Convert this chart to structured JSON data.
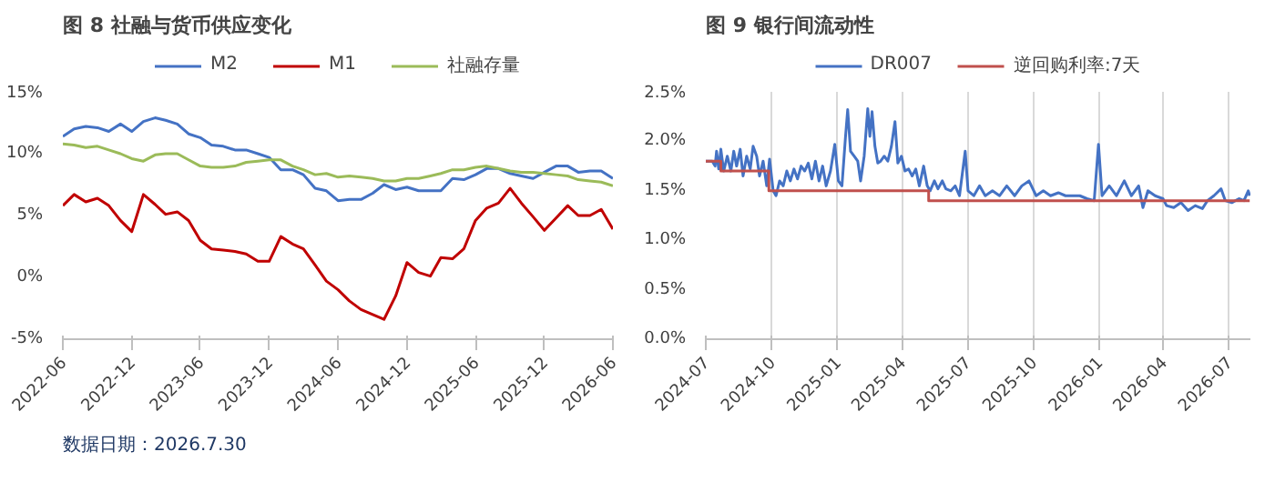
{
  "chart_data": [
    {
      "type": "line",
      "title": "图 8  社融与货币供应变化",
      "legend": "top",
      "grid": false,
      "annotations": [
        "数据日期：2026.7.30"
      ],
      "x": [
        "2022-06",
        "2022-07",
        "2022-08",
        "2022-09",
        "2022-10",
        "2022-11",
        "2022-12",
        "2023-01",
        "2023-02",
        "2023-03",
        "2023-04",
        "2023-05",
        "2023-06",
        "2023-07",
        "2023-08",
        "2023-09",
        "2023-10",
        "2023-11",
        "2023-12",
        "2024-01",
        "2024-02",
        "2024-03",
        "2024-04",
        "2024-05",
        "2024-06",
        "2024-07",
        "2024-08",
        "2024-09",
        "2024-10",
        "2024-11",
        "2024-12",
        "2025-01",
        "2025-02",
        "2025-03",
        "2025-04",
        "2025-05",
        "2025-06",
        "2025-07",
        "2025-08",
        "2025-09",
        "2025-10",
        "2025-11",
        "2025-12",
        "2026-01",
        "2026-02",
        "2026-03",
        "2026-04",
        "2026-05",
        "2026-06"
      ],
      "xlim": [
        "2022-06",
        "2026-06"
      ],
      "xticks": [
        "2022-06",
        "2022-12",
        "2023-06",
        "2023-12",
        "2024-06",
        "2024-12",
        "2025-06",
        "2025-12",
        "2026-06"
      ],
      "ylim": [
        -5,
        15
      ],
      "yticks": [
        {
          "value": -5,
          "label": "-5%"
        },
        {
          "value": 0,
          "label": "0%"
        },
        {
          "value": 5,
          "label": "5%"
        },
        {
          "value": 10,
          "label": "10%"
        },
        {
          "value": 15,
          "label": "15%"
        }
      ],
      "series": [
        {
          "name": "M2",
          "color": "#4472c4",
          "values": [
            11.4,
            12.0,
            12.2,
            12.1,
            11.8,
            12.4,
            11.8,
            12.6,
            12.9,
            12.7,
            12.4,
            11.6,
            11.3,
            10.7,
            10.6,
            10.3,
            10.3,
            10.0,
            9.7,
            8.7,
            8.7,
            8.3,
            7.2,
            7.0,
            6.2,
            6.3,
            6.3,
            6.8,
            7.5,
            7.1,
            7.3,
            7.0,
            7.0,
            7.0,
            8.0,
            7.9,
            8.3,
            8.8,
            8.8,
            8.4,
            8.2,
            8.0,
            8.5,
            9.0,
            9.0,
            8.5,
            8.6,
            8.6,
            8.0
          ]
        },
        {
          "name": "M1",
          "color": "#c00000",
          "values": [
            5.8,
            6.7,
            6.1,
            6.4,
            5.8,
            4.6,
            3.7,
            6.7,
            5.9,
            5.1,
            5.3,
            4.6,
            3.0,
            2.3,
            2.2,
            2.1,
            1.9,
            1.3,
            1.3,
            3.3,
            2.7,
            2.3,
            1.0,
            -0.3,
            -1.0,
            -1.9,
            -2.6,
            -3.0,
            -3.4,
            -1.5,
            1.2,
            0.4,
            0.1,
            1.6,
            1.5,
            2.3,
            4.6,
            5.6,
            6.0,
            7.2,
            6.0,
            4.9,
            3.8,
            4.8,
            5.8,
            5.0,
            5.0,
            5.5,
            3.9
          ]
        },
        {
          "name": "社融存量",
          "color": "#9bbb59",
          "values": [
            10.8,
            10.7,
            10.5,
            10.6,
            10.3,
            10.0,
            9.6,
            9.4,
            9.9,
            10.0,
            10.0,
            9.5,
            9.0,
            8.9,
            8.9,
            9.0,
            9.3,
            9.4,
            9.5,
            9.5,
            9.0,
            8.7,
            8.3,
            8.4,
            8.1,
            8.2,
            8.1,
            8.0,
            7.8,
            7.8,
            8.0,
            8.0,
            8.2,
            8.4,
            8.7,
            8.7,
            8.9,
            9.0,
            8.8,
            8.6,
            8.5,
            8.5,
            8.4,
            8.3,
            8.2,
            7.9,
            7.8,
            7.7,
            7.4
          ]
        }
      ]
    },
    {
      "type": "line",
      "title": "图 9  银行间流动性",
      "legend": "top",
      "grid": "x",
      "xlim": [
        "2024-07-01",
        "2026-07-31"
      ],
      "xticks": [
        "2024-07",
        "2024-10",
        "2025-01",
        "2025-04",
        "2025-07",
        "2025-10",
        "2026-01",
        "2026-04",
        "2026-07"
      ],
      "ylim": [
        0,
        2.5
      ],
      "yticks": [
        {
          "value": 0,
          "label": "0.0%"
        },
        {
          "value": 0.5,
          "label": "0.5%"
        },
        {
          "value": 1,
          "label": "1.0%"
        },
        {
          "value": 1.5,
          "label": "1.5%"
        },
        {
          "value": 2,
          "label": "2.0%"
        },
        {
          "value": 2.5,
          "label": "2.5%"
        }
      ],
      "series": [
        {
          "name": "DR007",
          "color": "#4472c4",
          "x": [
            "2024-07-01",
            "2024-07-10",
            "2024-07-14",
            "2024-07-16",
            "2024-07-19",
            "2024-07-22",
            "2024-07-26",
            "2024-07-31",
            "2024-08-05",
            "2024-08-09",
            "2024-08-13",
            "2024-08-18",
            "2024-08-22",
            "2024-08-27",
            "2024-09-01",
            "2024-09-05",
            "2024-09-10",
            "2024-09-14",
            "2024-09-19",
            "2024-09-24",
            "2024-09-28",
            "2024-10-03",
            "2024-10-07",
            "2024-10-12",
            "2024-10-17",
            "2024-10-22",
            "2024-10-27",
            "2024-11-01",
            "2024-11-06",
            "2024-11-11",
            "2024-11-16",
            "2024-11-21",
            "2024-11-26",
            "2024-12-01",
            "2024-12-06",
            "2024-12-11",
            "2024-12-16",
            "2024-12-22",
            "2024-12-28",
            "2025-01-02",
            "2025-01-07",
            "2025-01-12",
            "2025-01-15",
            "2025-01-19",
            "2025-01-24",
            "2025-01-29",
            "2025-02-02",
            "2025-02-07",
            "2025-02-12",
            "2025-02-15",
            "2025-02-18",
            "2025-02-22",
            "2025-02-26",
            "2025-03-02",
            "2025-03-07",
            "2025-03-12",
            "2025-03-17",
            "2025-03-22",
            "2025-03-26",
            "2025-03-31",
            "2025-04-05",
            "2025-04-10",
            "2025-04-15",
            "2025-04-20",
            "2025-04-25",
            "2025-05-01",
            "2025-05-06",
            "2025-05-10",
            "2025-05-16",
            "2025-05-21",
            "2025-05-27",
            "2025-06-01",
            "2025-06-08",
            "2025-06-14",
            "2025-06-20",
            "2025-06-28",
            "2025-07-02",
            "2025-07-10",
            "2025-07-18",
            "2025-07-26",
            "2025-08-05",
            "2025-08-15",
            "2025-08-25",
            "2025-09-05",
            "2025-09-15",
            "2025-09-25",
            "2025-10-05",
            "2025-10-15",
            "2025-10-25",
            "2025-11-05",
            "2025-11-15",
            "2025-11-25",
            "2025-12-05",
            "2025-12-15",
            "2025-12-25",
            "2025-12-31",
            "2026-01-05",
            "2026-01-15",
            "2026-01-25",
            "2026-02-05",
            "2026-02-15",
            "2026-02-25",
            "2026-03-03",
            "2026-03-10",
            "2026-03-20",
            "2026-03-31",
            "2026-04-05",
            "2026-04-15",
            "2026-04-25",
            "2026-05-05",
            "2026-05-15",
            "2026-05-25",
            "2026-06-01",
            "2026-06-10",
            "2026-06-20",
            "2026-06-26",
            "2026-07-05",
            "2026-07-15",
            "2026-07-22",
            "2026-07-28",
            "2026-07-30"
          ],
          "values": [
            1.8,
            1.8,
            1.75,
            1.9,
            1.72,
            1.92,
            1.7,
            1.85,
            1.7,
            1.9,
            1.75,
            1.92,
            1.65,
            1.85,
            1.72,
            1.95,
            1.85,
            1.65,
            1.8,
            1.55,
            1.82,
            1.5,
            1.45,
            1.6,
            1.55,
            1.7,
            1.6,
            1.72,
            1.62,
            1.75,
            1.7,
            1.78,
            1.62,
            1.8,
            1.6,
            1.75,
            1.55,
            1.7,
            1.97,
            1.6,
            1.55,
            2.05,
            2.32,
            1.9,
            1.85,
            1.8,
            1.6,
            1.85,
            2.33,
            2.05,
            2.3,
            1.95,
            1.78,
            1.8,
            1.85,
            1.8,
            1.95,
            2.2,
            1.78,
            1.85,
            1.7,
            1.72,
            1.65,
            1.72,
            1.55,
            1.75,
            1.55,
            1.5,
            1.6,
            1.52,
            1.6,
            1.52,
            1.5,
            1.55,
            1.45,
            1.9,
            1.5,
            1.45,
            1.55,
            1.45,
            1.5,
            1.45,
            1.55,
            1.45,
            1.55,
            1.6,
            1.45,
            1.5,
            1.45,
            1.48,
            1.45,
            1.45,
            1.45,
            1.42,
            1.4,
            1.97,
            1.45,
            1.55,
            1.45,
            1.6,
            1.45,
            1.55,
            1.33,
            1.5,
            1.45,
            1.42,
            1.35,
            1.33,
            1.38,
            1.3,
            1.35,
            1.32,
            1.4,
            1.45,
            1.52,
            1.4,
            1.38,
            1.42,
            1.4,
            1.5,
            1.45
          ]
        },
        {
          "name": "逆回购利率:7天",
          "color": "#c0504d",
          "type": "step",
          "x": [
            "2024-07-01",
            "2024-07-22",
            "2024-09-27",
            "2025-05-08",
            "2026-07-30"
          ],
          "values": [
            1.8,
            1.7,
            1.5,
            1.4,
            1.4
          ]
        }
      ]
    }
  ]
}
